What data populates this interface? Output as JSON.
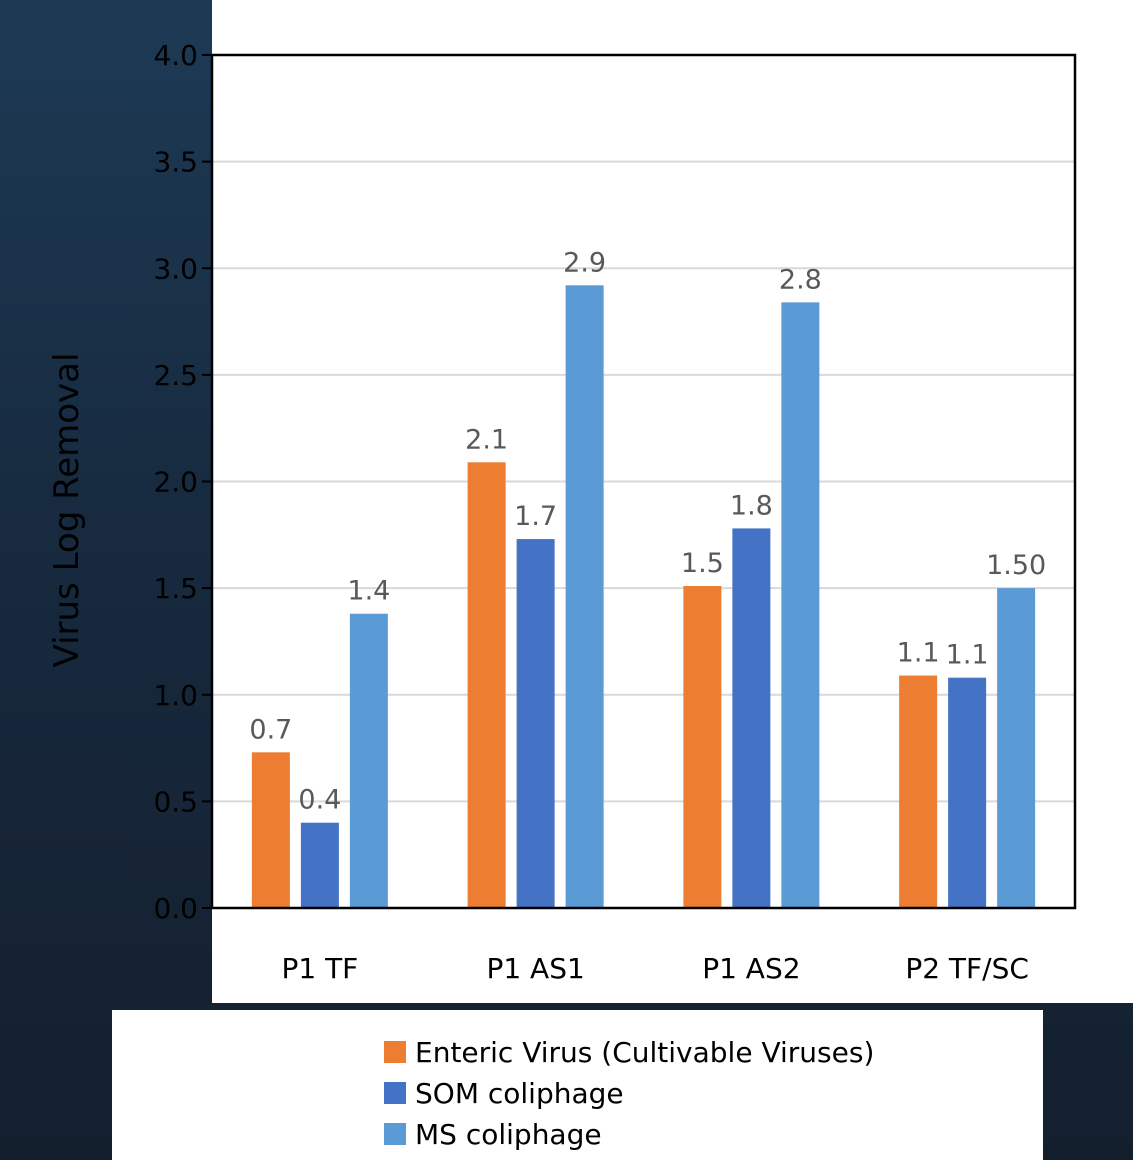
{
  "chart_data": {
    "type": "bar",
    "title": "",
    "xlabel": "",
    "ylabel": "Virus Log Removal",
    "ylim": [
      0,
      4.0
    ],
    "yticks": [
      "0.0",
      "0.5",
      "1.0",
      "1.5",
      "2.0",
      "2.5",
      "3.0",
      "3.5",
      "4.0"
    ],
    "grid": true,
    "legend_position": "bottom",
    "categories": [
      "P1 TF",
      "P1 AS1",
      "P1 AS2",
      "P2 TF/SC"
    ],
    "series": [
      {
        "name": "Enteric Virus (Cultivable Viruses)",
        "color": "#ed7d31",
        "values": [
          0.73,
          2.09,
          1.51,
          1.09
        ],
        "labels": [
          "0.7",
          "2.1",
          "1.5",
          "1.1"
        ]
      },
      {
        "name": "SOM coliphage",
        "color": "#4472c4",
        "values": [
          0.4,
          1.73,
          1.78,
          1.08
        ],
        "labels": [
          "0.4",
          "1.7",
          "1.8",
          "1.1"
        ]
      },
      {
        "name": "MS coliphage",
        "color": "#5b9bd5",
        "values": [
          1.38,
          2.92,
          2.84,
          1.5
        ],
        "labels": [
          "1.4",
          "2.9",
          "2.8",
          "1.50"
        ]
      }
    ]
  }
}
